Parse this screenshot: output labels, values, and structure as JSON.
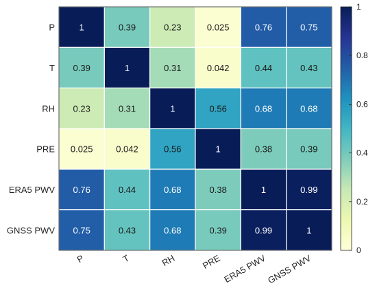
{
  "chart_data": {
    "type": "heatmap",
    "title": "",
    "xlabel": "",
    "ylabel": "",
    "x_categories": [
      "P",
      "T",
      "RH",
      "PRE",
      "ERA5 PWV",
      "GNSS PWV"
    ],
    "y_categories": [
      "P",
      "T",
      "RH",
      "PRE",
      "ERA5 PWV",
      "GNSS PWV"
    ],
    "values": [
      [
        "1",
        "0.39",
        "0.23",
        "0.025",
        "0.76",
        "0.75"
      ],
      [
        "0.39",
        "1",
        "0.31",
        "0.042",
        "0.44",
        "0.43"
      ],
      [
        "0.23",
        "0.31",
        "1",
        "0.56",
        "0.68",
        "0.68"
      ],
      [
        "0.025",
        "0.042",
        "0.56",
        "1",
        "0.38",
        "0.39"
      ],
      [
        "0.76",
        "0.44",
        "0.68",
        "0.38",
        "1",
        "0.99"
      ],
      [
        "0.75",
        "0.43",
        "0.68",
        "0.39",
        "0.99",
        "1"
      ]
    ],
    "colorbar": {
      "range": [
        0,
        1
      ],
      "ticks": [
        "0",
        "0.2",
        "0.4",
        "0.6",
        "0.8",
        "1"
      ],
      "colormap": "YlGnBu",
      "position": "right"
    },
    "grid": true
  }
}
